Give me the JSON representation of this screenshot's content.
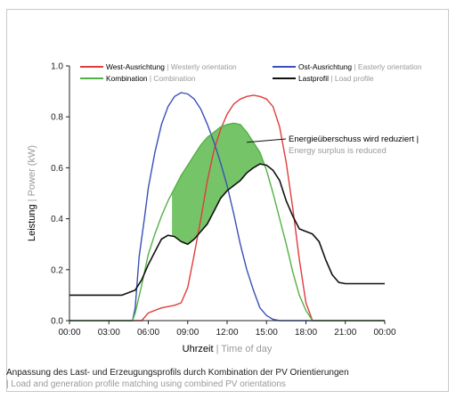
{
  "chart_data": {
    "type": "line",
    "title": "Anpassung des Last- und Erzeugungsprofils durch Kombination der PV Orientierungen",
    "title_en": "| Load and generation profile matching using combined PV orientations",
    "xlabel": "Uhrzeit",
    "xlabel_en": "| Time of day",
    "ylabel": "Leistung",
    "ylabel_en": "| Power (kW)",
    "xlim": [
      0,
      24
    ],
    "ylim": [
      0,
      1.0
    ],
    "x_ticks": [
      "00:00",
      "03:00",
      "06:00",
      "09:00",
      "12:00",
      "15:00",
      "18:00",
      "21:00",
      "00:00"
    ],
    "y_ticks": [
      "0.0",
      "0.2",
      "0.4",
      "0.6",
      "0.8",
      "1.0"
    ],
    "grid": false,
    "legend_position": "top",
    "annotation": {
      "label": "Energieüberschuss wird reduziert |",
      "label_en": "Energy surplus is reduced",
      "target_time": 13.5,
      "target_value": 0.7
    },
    "series": [
      {
        "name": "West-Ausrichtung",
        "name_en": "| Westerly orientation",
        "color": "#e03c3c",
        "x": [
          0,
          5.5,
          6,
          7,
          8,
          8.5,
          9,
          9.5,
          10,
          10.5,
          11,
          11.5,
          12,
          12.5,
          13,
          13.5,
          14,
          14.5,
          15,
          15.5,
          16,
          16.5,
          17,
          17.5,
          18,
          18.5,
          24
        ],
        "values": [
          0,
          0,
          0.03,
          0.05,
          0.06,
          0.07,
          0.13,
          0.26,
          0.4,
          0.55,
          0.67,
          0.75,
          0.81,
          0.85,
          0.87,
          0.88,
          0.885,
          0.88,
          0.87,
          0.84,
          0.76,
          0.62,
          0.44,
          0.24,
          0.07,
          0,
          0
        ]
      },
      {
        "name": "Ost-Ausrichtung",
        "name_en": "| Easterly orientation",
        "color": "#3a4fb8",
        "x": [
          0,
          4.8,
          5,
          5.3,
          5.7,
          6,
          6.5,
          7,
          7.5,
          8,
          8.5,
          9,
          9.5,
          10,
          10.5,
          11,
          11.5,
          12,
          12.5,
          13,
          13.5,
          14,
          14.5,
          15,
          15.5,
          16,
          24
        ],
        "values": [
          0,
          0,
          0.05,
          0.25,
          0.4,
          0.52,
          0.66,
          0.77,
          0.84,
          0.88,
          0.895,
          0.89,
          0.87,
          0.83,
          0.77,
          0.7,
          0.62,
          0.53,
          0.42,
          0.3,
          0.2,
          0.12,
          0.05,
          0.02,
          0.005,
          0,
          0
        ]
      },
      {
        "name": "Kombination",
        "name_en": "| Combination",
        "color": "#52b144",
        "x": [
          0,
          4.8,
          5,
          5.5,
          6,
          6.5,
          7,
          7.5,
          8,
          8.5,
          9,
          9.5,
          10,
          10.5,
          11,
          11.5,
          12,
          12.5,
          13,
          13.5,
          14,
          14.5,
          15,
          15.5,
          16,
          16.5,
          17,
          17.5,
          18,
          18.5,
          24
        ],
        "values": [
          0,
          0,
          0.03,
          0.14,
          0.26,
          0.34,
          0.41,
          0.47,
          0.52,
          0.57,
          0.61,
          0.65,
          0.69,
          0.72,
          0.74,
          0.76,
          0.77,
          0.775,
          0.77,
          0.74,
          0.7,
          0.66,
          0.59,
          0.5,
          0.4,
          0.3,
          0.19,
          0.1,
          0.04,
          0,
          0
        ]
      },
      {
        "name": "Lastprofil",
        "name_en": "| Load profile",
        "color": "#111111",
        "x": [
          0,
          4,
          5,
          5.5,
          6,
          6.5,
          7,
          7.5,
          8,
          8.5,
          9,
          9.5,
          10,
          10.5,
          11,
          11.5,
          12,
          12.5,
          13,
          13.5,
          14,
          14.5,
          15,
          15.5,
          16,
          16.5,
          17,
          17.5,
          18,
          18.5,
          19,
          19.5,
          20,
          20.5,
          21,
          22,
          24
        ],
        "values": [
          0.1,
          0.1,
          0.12,
          0.16,
          0.22,
          0.27,
          0.32,
          0.335,
          0.33,
          0.31,
          0.3,
          0.32,
          0.35,
          0.38,
          0.43,
          0.48,
          0.51,
          0.53,
          0.55,
          0.58,
          0.6,
          0.615,
          0.61,
          0.59,
          0.55,
          0.47,
          0.41,
          0.36,
          0.35,
          0.34,
          0.31,
          0.24,
          0.18,
          0.15,
          0.145,
          0.145,
          0.145
        ]
      }
    ]
  }
}
